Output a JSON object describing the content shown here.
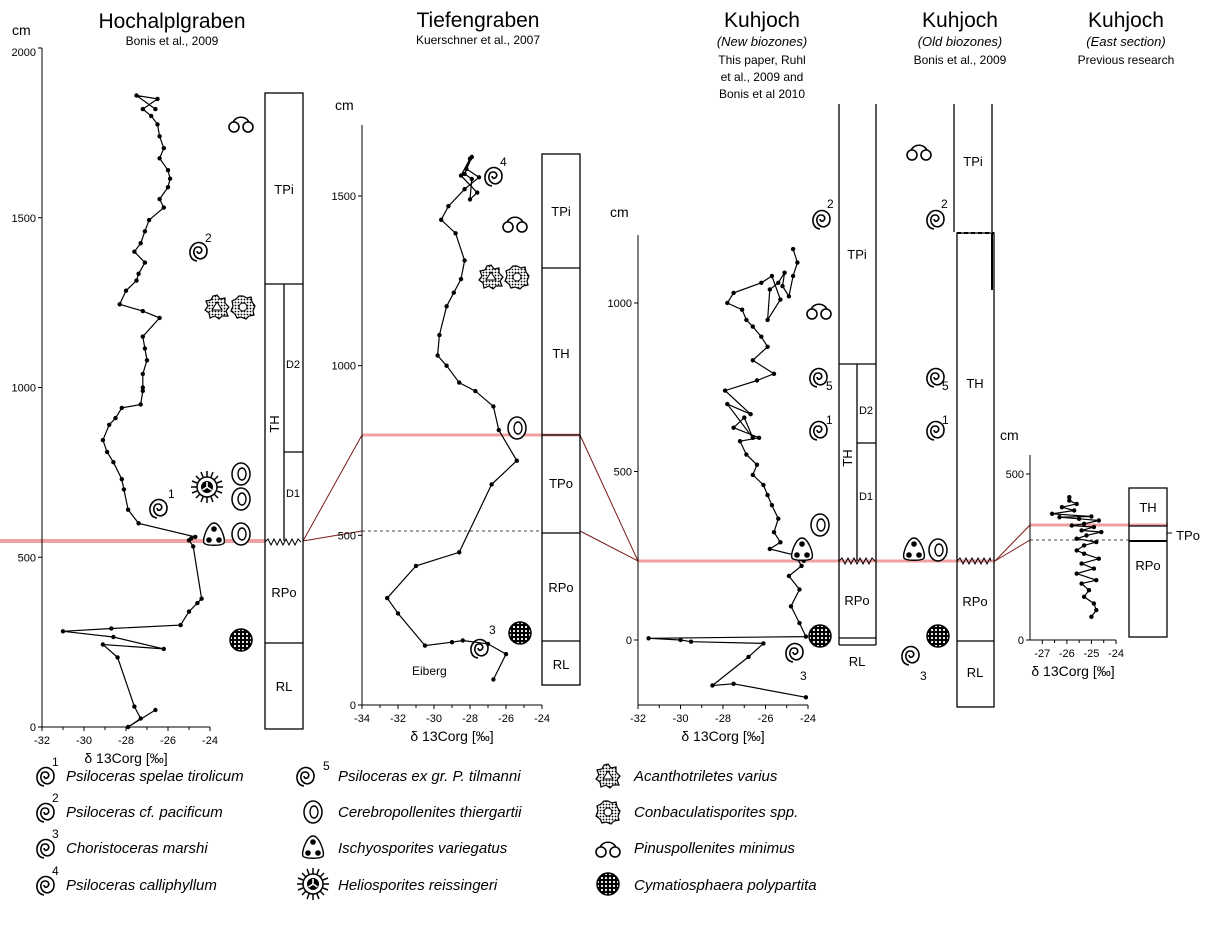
{
  "colors": {
    "boundary": "#f0a0a0",
    "ink": "#000000",
    "tie": "#7a1a1a"
  },
  "chart_data": [
    {
      "type": "line",
      "title": "Hochalplgraben",
      "subtitle": "Bonis et al., 2009",
      "xlabel": "δ 13Corg [‰]",
      "ylabel": "cm",
      "xlim": [
        -32,
        -24
      ],
      "ylim": [
        0,
        2000
      ],
      "xticks": [
        "-32",
        "-30",
        "-28",
        "-26",
        "-24"
      ],
      "yticks": [
        "0",
        "500",
        "1000",
        "1500",
        "2000"
      ],
      "boundary_cm": 550,
      "series": [
        {
          "x": [
            -26.6,
            -27.9,
            -27.3,
            -27.6,
            -28.4,
            -29.1,
            -26.2,
            -28.6,
            -31.0,
            -28.7,
            -25.4,
            -25.0,
            -24.6,
            -24.4,
            -24.8,
            -25.0,
            -24.9,
            -24.7,
            -27.4,
            -27.9,
            -28.1,
            -28.2,
            -28.6,
            -28.9,
            -29.1,
            -28.8,
            -28.5,
            -28.2,
            -27.3,
            -27.2,
            -27.2,
            -27.2,
            -27.0,
            -27.1,
            -27.2,
            -26.4,
            -27.2,
            -28.3,
            -28.0,
            -27.5,
            -27.4,
            -27.1,
            -27.6,
            -27.3,
            -27.1,
            -26.9,
            -26.2,
            -26.4,
            -26.0,
            -25.9,
            -26.0,
            -26.4,
            -26.2,
            -26.4,
            -26.5,
            -26.8,
            -27.2,
            -26.5,
            -27.5,
            -26.6
          ],
          "y": [
            50,
            0,
            25,
            60,
            205,
            243,
            230,
            265,
            282,
            290,
            300,
            340,
            365,
            378,
            532,
            550,
            555,
            560,
            600,
            640,
            700,
            730,
            780,
            810,
            845,
            890,
            910,
            940,
            950,
            990,
            1000,
            1040,
            1080,
            1115,
            1150,
            1205,
            1225,
            1245,
            1285,
            1315,
            1335,
            1368,
            1400,
            1425,
            1460,
            1493,
            1530,
            1555,
            1590,
            1615,
            1640,
            1675,
            1705,
            1740,
            1775,
            1800,
            1820,
            1850,
            1860,
            1820
          ]
        }
      ],
      "zones": [
        {
          "label": "TPi",
          "from_cm": 1310,
          "to_cm": 1860
        },
        {
          "label": "TH",
          "from_cm": 550,
          "to_cm": 1310
        },
        {
          "label": "D2",
          "from_cm": 810,
          "to_cm": 1310
        },
        {
          "label": "D1",
          "from_cm": 550,
          "to_cm": 810
        },
        {
          "label": "RPo",
          "from_cm": 240,
          "to_cm": 550
        },
        {
          "label": "RL",
          "from_cm": 0,
          "to_cm": 240
        }
      ]
    },
    {
      "type": "line",
      "title": "Tiefengraben",
      "subtitle": "Kuerschner et al., 2007",
      "xlabel": "δ 13Corg [‰]",
      "ylabel": "cm",
      "xlim": [
        -34,
        -24
      ],
      "ylim": [
        0,
        1650
      ],
      "xticks": [
        "-34",
        "-32",
        "-30",
        "-28",
        "-26",
        "-24"
      ],
      "yticks": [
        "0",
        "500",
        "1000",
        "1500"
      ],
      "boundary_cm": 800,
      "dashed_cm": 500,
      "annotation": "Eiberg",
      "series": [
        {
          "x": [
            -26.7,
            -26.0,
            -27.0,
            -28.4,
            -29.0,
            -30.5,
            -32.0,
            -32.6,
            -31.0,
            -28.6,
            -26.8,
            -25.4,
            -26.4,
            -26.7,
            -27.7,
            -28.6,
            -29.3,
            -29.8,
            -29.7,
            -29.3,
            -28.9,
            -28.5,
            -28.3,
            -28.8,
            -29.6,
            -29.2,
            -28.3,
            -27.5,
            -28.2,
            -28.0,
            -28.5,
            -27.6,
            -28.0,
            -27.9,
            -28.3,
            -27.9
          ],
          "y": [
            75,
            150,
            180,
            190,
            185,
            175,
            270,
            315,
            410,
            450,
            650,
            720,
            810,
            880,
            925,
            950,
            1000,
            1030,
            1090,
            1175,
            1215,
            1255,
            1310,
            1390,
            1430,
            1470,
            1520,
            1555,
            1580,
            1610,
            1560,
            1510,
            1490,
            1550,
            1565,
            1615
          ]
        }
      ],
      "zones": [
        {
          "label": "TPi",
          "from_cm": 1275,
          "to_cm": 1625
        },
        {
          "label": "TH",
          "from_cm": 800,
          "to_cm": 1275
        },
        {
          "label": "TPo",
          "from_cm": 500,
          "to_cm": 800
        },
        {
          "label": "RPo",
          "from_cm": 180,
          "to_cm": 500
        },
        {
          "label": "RL",
          "from_cm": 0,
          "to_cm": 180
        }
      ]
    },
    {
      "type": "line",
      "title": "Kuhjoch",
      "subtitle": "(New biozones)",
      "note": [
        "This paper, Ruhl",
        "et al., 2009 and",
        "Bonis et al 2010"
      ],
      "xlabel": "δ 13Corg [‰]",
      "ylabel": "cm",
      "xlim": [
        -32,
        -24
      ],
      "ylim": [
        -270,
        1200
      ],
      "xticks": [
        "-32",
        "-30",
        "-28",
        "-26",
        "-24"
      ],
      "yticks": [
        "0",
        "500",
        "1000"
      ],
      "boundary_cm": 240,
      "series": [
        {
          "x": [
            -24.1,
            -27.5,
            -28.5,
            -26.8,
            -26.1,
            -29.5,
            -30.0,
            -31.5,
            -24.1,
            -24.4,
            -24.8,
            -24.4,
            -24.9,
            -24.3,
            -24.6,
            -24.2,
            -24.4,
            -24.5,
            -25.8,
            -25.3,
            -25.6,
            -25.4,
            -25.7,
            -25.9,
            -26.1,
            -26.6,
            -26.4,
            -26.9,
            -27.2,
            -26.3,
            -27.5,
            -27.0,
            -26.6,
            -27.8,
            -26.7,
            -27.9,
            -26.4,
            -25.6,
            -26.6,
            -25.9,
            -26.2,
            -26.6,
            -26.9,
            -27.1,
            -27.8,
            -27.5,
            -26.2,
            -25.7,
            -25.3,
            -25.9,
            -25.8,
            -25.4,
            -25.1,
            -25.2,
            -24.9,
            -24.7,
            -24.5,
            -24.7
          ],
          "y": [
            -170,
            -130,
            -135,
            -50,
            -10,
            -5,
            0,
            5,
            10,
            50,
            100,
            150,
            190,
            220,
            250,
            235,
            240,
            250,
            270,
            290,
            320,
            360,
            400,
            430,
            460,
            490,
            520,
            550,
            590,
            600,
            630,
            660,
            600,
            700,
            670,
            740,
            770,
            790,
            830,
            870,
            900,
            930,
            950,
            980,
            1000,
            1030,
            1060,
            1080,
            1010,
            950,
            1040,
            1060,
            1090,
            1050,
            1020,
            1080,
            1120,
            1160
          ]
        }
      ],
      "zones": [
        {
          "label": "TPi",
          "from_cm": 830,
          "to_cm": 1600
        },
        {
          "label": "TH",
          "from_cm": 240,
          "to_cm": 830
        },
        {
          "label": "D2",
          "from_cm": 590,
          "to_cm": 830
        },
        {
          "label": "D1",
          "from_cm": 240,
          "to_cm": 590
        },
        {
          "label": "RPo",
          "from_cm": 0,
          "to_cm": 240
        },
        {
          "label": "RL",
          "from_cm": -40,
          "to_cm": 0
        }
      ]
    },
    {
      "type": "table",
      "title": "Kuhjoch",
      "subtitle": "(Old biozones)",
      "note": [
        "Bonis et al., 2009"
      ],
      "zones": [
        {
          "label": "TPi"
        },
        {
          "label": "TH"
        },
        {
          "label": "RPo"
        },
        {
          "label": "RL"
        }
      ]
    },
    {
      "type": "line",
      "title": "Kuhjoch",
      "subtitle": "(East section)",
      "note": [
        "Previous research"
      ],
      "xlabel": "δ 13Corg [‰]",
      "ylabel": "cm",
      "xlim": [
        -27.5,
        -24
      ],
      "ylim": [
        0,
        550
      ],
      "xticks": [
        "-27",
        "-26",
        "-25",
        "-24"
      ],
      "yticks": [
        "0",
        "500"
      ],
      "boundary_cm": 350,
      "dashed_cm": 300,
      "series": [
        {
          "x": [
            -25.0,
            -24.8,
            -24.9,
            -25.3,
            -25.1,
            -25.4,
            -24.8,
            -25.6,
            -24.9,
            -25.4,
            -24.7,
            -25.3,
            -25.6,
            -25.3,
            -24.8,
            -25.6,
            -25.2,
            -24.6,
            -25.4,
            -24.9,
            -25.8,
            -25.3,
            -24.7,
            -25.5,
            -26.3,
            -25.0,
            -26.6,
            -25.7,
            -26.2,
            -25.6,
            -25.9,
            -25.9
          ],
          "y": [
            70,
            90,
            110,
            130,
            150,
            170,
            180,
            200,
            215,
            230,
            245,
            260,
            270,
            285,
            295,
            305,
            315,
            325,
            330,
            340,
            345,
            350,
            360,
            365,
            370,
            372,
            380,
            390,
            400,
            410,
            420,
            430
          ]
        }
      ],
      "zones": [
        {
          "label": "TH"
        },
        {
          "label": "TPo"
        },
        {
          "label": "RPo"
        }
      ]
    }
  ],
  "legend": {
    "items": [
      {
        "icon": "ammonite-1-icon",
        "sup": "1",
        "label": "Psiloceras spelae tirolicum"
      },
      {
        "icon": "ammonite-2-icon",
        "sup": "2",
        "label": "Psiloceras cf. pacificum"
      },
      {
        "icon": "ammonite-3-icon",
        "sup": "3",
        "label": "Choristoceras marshi"
      },
      {
        "icon": "ammonite-4-icon",
        "sup": "4",
        "label": "Psiloceras calliphyllum"
      },
      {
        "icon": "ammonite-5-icon",
        "sup": "5",
        "label": "Psiloceras ex gr. P. tilmanni"
      },
      {
        "icon": "cerebropollenites-icon",
        "label": "Cerebropollenites thiergartii"
      },
      {
        "icon": "ischyosporites-icon",
        "label": "Ischyosporites variegatus"
      },
      {
        "icon": "heliosporites-icon",
        "label": "Heliosporites reissingeri"
      },
      {
        "icon": "acanthotriletes-icon",
        "label": "Acanthotriletes varius"
      },
      {
        "icon": "conbaculatisporites-icon",
        "label": "Conbaculatisporites spp."
      },
      {
        "icon": "pinuspollenites-icon",
        "label": "Pinuspollenites minimus"
      },
      {
        "icon": "cymatiosphaera-icon",
        "label": "Cymatiosphaera polypartita"
      }
    ]
  }
}
